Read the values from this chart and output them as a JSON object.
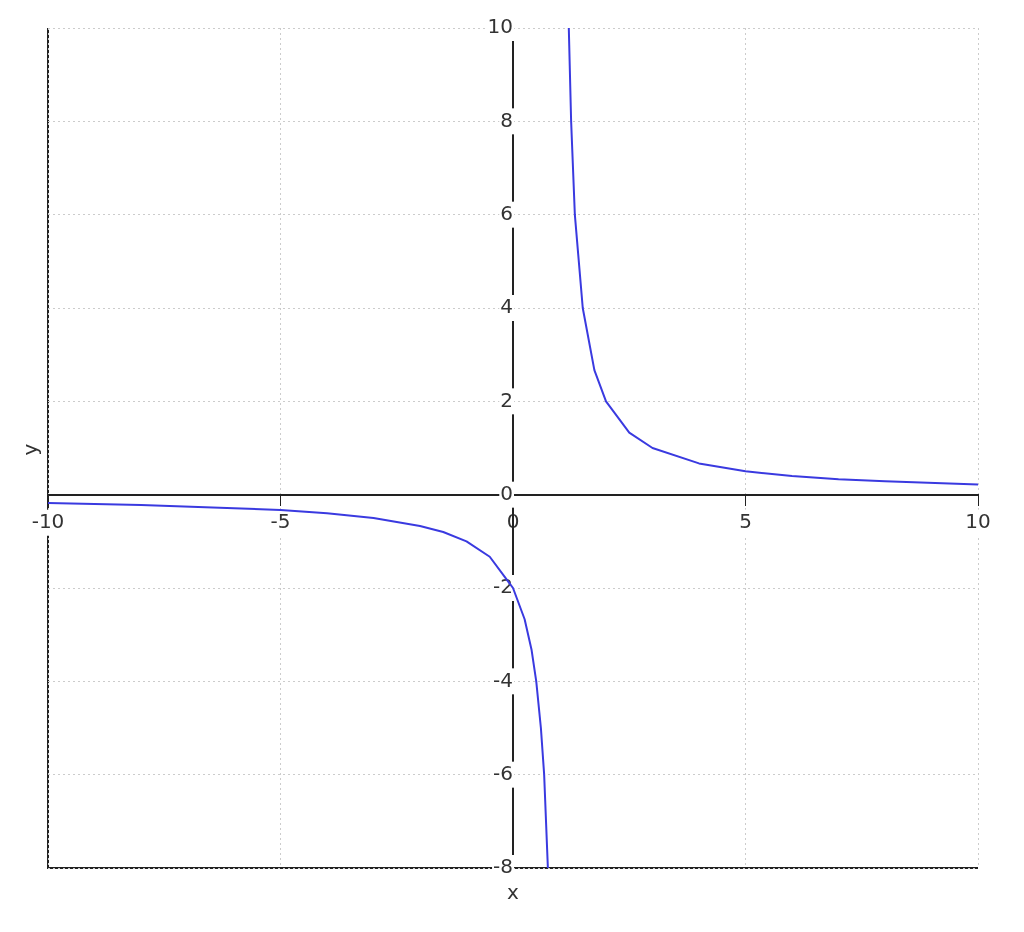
{
  "chart_data": {
    "type": "line",
    "xlabel": "x",
    "ylabel": "y",
    "xlim": [
      -10,
      10
    ],
    "ylim": [
      -8,
      10
    ],
    "xticks": [
      -10,
      -5,
      0,
      5,
      10
    ],
    "yticks": [
      -8,
      -6,
      -4,
      -2,
      0,
      2,
      4,
      6,
      8,
      10
    ],
    "grid": true,
    "legend": false,
    "marker": "none",
    "line_style": "solid",
    "series": [
      {
        "color": "#3a3ae0",
        "x": [
          -10,
          -8,
          -6,
          -5,
          -4,
          -3,
          -2,
          -1.5,
          -1,
          -0.5,
          0,
          0.25,
          0.4,
          0.5,
          0.6,
          0.67,
          0.75,
          1,
          1.2,
          1.25,
          1.33,
          1.5,
          1.75,
          2,
          2.5,
          3,
          4,
          5,
          6,
          7,
          8,
          10
        ],
        "values": [
          -0.18,
          -0.22,
          -0.29,
          -0.33,
          -0.4,
          -0.5,
          -0.67,
          -0.8,
          -1,
          -1.33,
          -2,
          -2.67,
          -3.33,
          -4,
          -5,
          -6,
          -8,
          null,
          10,
          8,
          6,
          4,
          2.67,
          2,
          1.33,
          1,
          0.67,
          0.5,
          0.4,
          0.33,
          0.29,
          0.22
        ]
      }
    ]
  }
}
